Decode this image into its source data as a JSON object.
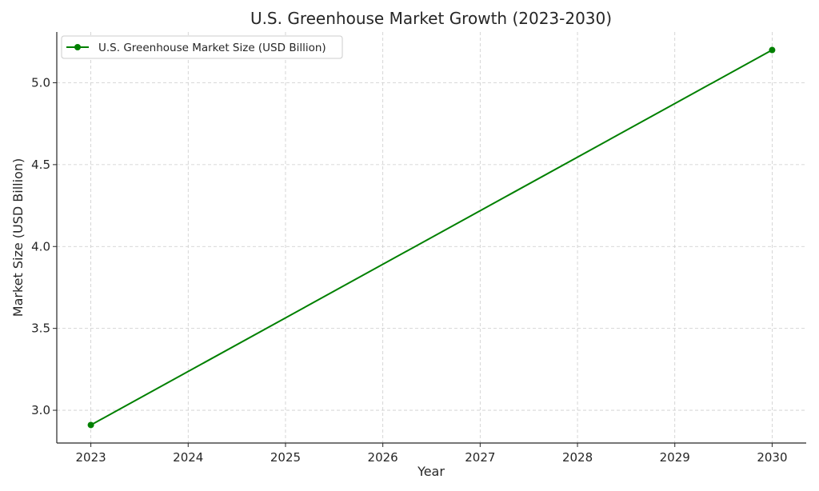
{
  "chart_data": {
    "type": "line",
    "title": "U.S. Greenhouse Market Growth (2023-2030)",
    "xlabel": "Year",
    "ylabel": "Market Size (USD Billion)",
    "x": [
      2023,
      2030
    ],
    "x_ticks": [
      "2023",
      "2024",
      "2025",
      "2026",
      "2027",
      "2028",
      "2029",
      "2030"
    ],
    "y_ticks": [
      "3.0",
      "3.5",
      "4.0",
      "4.5",
      "5.0"
    ],
    "xlim": [
      2022.65,
      2030.35
    ],
    "ylim": [
      2.8,
      5.31
    ],
    "grid": true,
    "legend_position": "top-left",
    "series": [
      {
        "name": "U.S. Greenhouse Market Size (USD Billion)",
        "color": "#008000",
        "marker": "circle",
        "x": [
          2023,
          2030
        ],
        "y": [
          2.91,
          5.2
        ]
      }
    ]
  }
}
